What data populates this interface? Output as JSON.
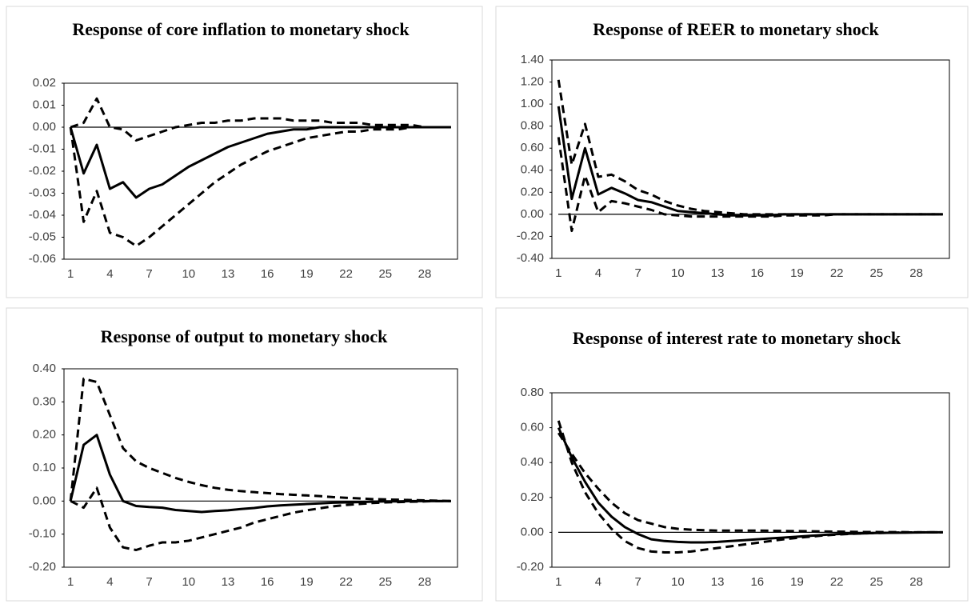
{
  "chart_data": [
    {
      "type": "line",
      "title": "Response of core inflation to monetary shock",
      "categories": [
        1,
        null,
        null,
        4,
        null,
        null,
        7,
        null,
        null,
        10,
        null,
        null,
        13,
        null,
        null,
        16,
        null,
        null,
        19,
        null,
        null,
        22,
        null,
        null,
        25,
        null,
        null,
        28,
        null,
        null
      ],
      "ylim": [
        -0.06,
        0.02
      ],
      "yticks": [
        -0.06,
        -0.05,
        -0.04,
        -0.03,
        -0.02,
        -0.01,
        {
          "value": 0,
          "label": "0.00"
        },
        0.01,
        0.02
      ],
      "zero_line": true,
      "series": [
        {
          "color": "#000000",
          "dashed": false,
          "values": [
            0,
            -0.021,
            -0.008,
            -0.028,
            -0.025,
            -0.032,
            -0.028,
            -0.026,
            -0.022,
            -0.018,
            -0.015,
            -0.012,
            -0.009,
            -0.007,
            -0.005,
            -0.003,
            -0.002,
            -0.001,
            -0.001,
            0,
            0,
            0,
            0,
            0,
            0,
            0,
            0,
            0,
            0,
            0
          ]
        },
        {
          "color": "#000000",
          "dashed": true,
          "values": [
            0,
            -0.043,
            -0.029,
            -0.048,
            -0.05,
            -0.054,
            -0.05,
            -0.045,
            -0.04,
            -0.035,
            -0.03,
            -0.025,
            -0.021,
            -0.017,
            -0.014,
            -0.011,
            -0.009,
            -0.007,
            -0.005,
            -0.004,
            -0.003,
            -0.002,
            -0.002,
            -0.001,
            -0.001,
            -0.001,
            0,
            0,
            0,
            0
          ]
        },
        {
          "color": "#000000",
          "dashed": true,
          "values": [
            0,
            0.002,
            0.013,
            0,
            -0.001,
            -0.006,
            -0.004,
            -0.002,
            0,
            0.001,
            0.002,
            0.002,
            0.003,
            0.003,
            0.004,
            0.004,
            0.004,
            0.003,
            0.003,
            0.003,
            0.002,
            0.002,
            0.002,
            0.001,
            0.001,
            0.001,
            0.001,
            0,
            0,
            0
          ]
        }
      ]
    },
    {
      "type": "line",
      "title": "Response of REER to monetary shock",
      "categories": [
        1,
        null,
        null,
        4,
        null,
        null,
        7,
        null,
        null,
        10,
        null,
        null,
        13,
        null,
        null,
        16,
        null,
        null,
        19,
        null,
        null,
        22,
        null,
        null,
        25,
        null,
        null,
        28,
        null,
        null
      ],
      "ylim": [
        -0.4,
        1.4
      ],
      "yticks": [
        {
          "value": -0.4,
          "label": "-0.40"
        },
        {
          "value": -0.2,
          "label": "-0.20"
        },
        {
          "value": 0,
          "label": "0.00"
        },
        {
          "value": 0.2,
          "label": "0.20"
        },
        {
          "value": 0.4,
          "label": "0.40"
        },
        {
          "value": 0.6,
          "label": "0.60"
        },
        {
          "value": 0.8,
          "label": "0.80"
        },
        {
          "value": 1.0,
          "label": "1.00"
        },
        {
          "value": 1.2,
          "label": "1.20"
        },
        {
          "value": 1.4,
          "label": "1.40"
        }
      ],
      "zero_line": true,
      "series": [
        {
          "color": "#000000",
          "dashed": false,
          "values": [
            0.98,
            0.14,
            0.6,
            0.18,
            0.24,
            0.19,
            0.13,
            0.11,
            0.07,
            0.03,
            0.02,
            0.01,
            0,
            -0.01,
            -0.01,
            -0.01,
            -0.01,
            0,
            0,
            0,
            0,
            0,
            0,
            0,
            0,
            0,
            0,
            0,
            0,
            0
          ]
        },
        {
          "color": "#000000",
          "dashed": true,
          "values": [
            0.7,
            -0.15,
            0.35,
            0.02,
            0.12,
            0.1,
            0.07,
            0.04,
            0,
            -0.01,
            -0.02,
            -0.02,
            -0.02,
            -0.02,
            -0.02,
            -0.02,
            -0.02,
            -0.01,
            -0.01,
            -0.01,
            -0.01,
            0,
            0,
            0,
            0,
            0,
            0,
            0,
            0,
            0
          ]
        },
        {
          "color": "#000000",
          "dashed": true,
          "values": [
            1.22,
            0.45,
            0.82,
            0.34,
            0.36,
            0.3,
            0.22,
            0.18,
            0.12,
            0.08,
            0.05,
            0.03,
            0.02,
            0.01,
            0,
            0,
            0,
            0,
            0,
            0,
            0,
            0,
            0,
            0,
            0,
            0,
            0,
            0,
            0,
            0
          ]
        }
      ]
    },
    {
      "type": "line",
      "title": "Response of output to monetary shock",
      "categories": [
        1,
        null,
        null,
        4,
        null,
        null,
        7,
        null,
        null,
        10,
        null,
        null,
        13,
        null,
        null,
        16,
        null,
        null,
        19,
        null,
        null,
        22,
        null,
        null,
        25,
        null,
        null,
        28,
        null,
        null
      ],
      "ylim": [
        -0.2,
        0.4
      ],
      "yticks": [
        {
          "value": -0.2,
          "label": "-0.20"
        },
        {
          "value": -0.1,
          "label": "-0.10"
        },
        {
          "value": 0,
          "label": "0.00"
        },
        {
          "value": 0.1,
          "label": "0.10"
        },
        {
          "value": 0.2,
          "label": "0.20"
        },
        {
          "value": 0.3,
          "label": "0.30"
        },
        {
          "value": 0.4,
          "label": "0.40"
        }
      ],
      "zero_line": true,
      "series": [
        {
          "color": "#000000",
          "dashed": false,
          "values": [
            0,
            0.17,
            0.2,
            0.08,
            0,
            -0.015,
            -0.018,
            -0.02,
            -0.027,
            -0.03,
            -0.033,
            -0.03,
            -0.028,
            -0.024,
            -0.021,
            -0.016,
            -0.013,
            -0.011,
            -0.009,
            -0.007,
            -0.005,
            -0.004,
            -0.003,
            -0.002,
            -0.001,
            -0.001,
            0,
            0,
            0,
            0
          ]
        },
        {
          "color": "#000000",
          "dashed": true,
          "values": [
            0,
            -0.02,
            0.04,
            -0.08,
            -0.14,
            -0.148,
            -0.135,
            -0.125,
            -0.125,
            -0.12,
            -0.11,
            -0.1,
            -0.09,
            -0.08,
            -0.065,
            -0.055,
            -0.045,
            -0.035,
            -0.028,
            -0.022,
            -0.016,
            -0.012,
            -0.009,
            -0.006,
            -0.004,
            -0.003,
            -0.002,
            -0.001,
            0,
            0
          ]
        },
        {
          "color": "#000000",
          "dashed": true,
          "values": [
            0,
            0.37,
            0.36,
            0.26,
            0.16,
            0.12,
            0.1,
            0.085,
            0.07,
            0.058,
            0.048,
            0.04,
            0.034,
            0.03,
            0.027,
            0.024,
            0.021,
            0.019,
            0.017,
            0.015,
            0.012,
            0.01,
            0.008,
            0.006,
            0.005,
            0.004,
            0.003,
            0.002,
            0.001,
            0
          ]
        }
      ]
    },
    {
      "type": "line",
      "title": "Response of interest rate to monetary shock",
      "categories": [
        1,
        null,
        null,
        4,
        null,
        null,
        7,
        null,
        null,
        10,
        null,
        null,
        13,
        null,
        null,
        16,
        null,
        null,
        19,
        null,
        null,
        22,
        null,
        null,
        25,
        null,
        null,
        28,
        null,
        null
      ],
      "ylim": [
        -0.2,
        0.8
      ],
      "yticks": [
        {
          "value": -0.2,
          "label": "-0.20"
        },
        {
          "value": 0,
          "label": "0.00"
        },
        {
          "value": 0.2,
          "label": "0.20"
        },
        {
          "value": 0.4,
          "label": "0.40"
        },
        {
          "value": 0.6,
          "label": "0.60"
        },
        {
          "value": 0.8,
          "label": "0.80"
        }
      ],
      "zero_line": true,
      "series": [
        {
          "color": "#000000",
          "dashed": false,
          "values": [
            0.6,
            0.43,
            0.29,
            0.17,
            0.09,
            0.03,
            -0.01,
            -0.04,
            -0.05,
            -0.055,
            -0.058,
            -0.058,
            -0.055,
            -0.05,
            -0.045,
            -0.04,
            -0.035,
            -0.03,
            -0.025,
            -0.02,
            -0.015,
            -0.01,
            -0.008,
            -0.006,
            -0.004,
            -0.003,
            -0.002,
            -0.001,
            0,
            0
          ]
        },
        {
          "color": "#000000",
          "dashed": true,
          "values": [
            0.64,
            0.4,
            0.23,
            0.11,
            0.02,
            -0.05,
            -0.09,
            -0.11,
            -0.115,
            -0.115,
            -0.11,
            -0.1,
            -0.09,
            -0.08,
            -0.07,
            -0.06,
            -0.05,
            -0.04,
            -0.032,
            -0.025,
            -0.018,
            -0.013,
            -0.009,
            -0.006,
            -0.004,
            -0.002,
            -0.001,
            0,
            0,
            0
          ]
        },
        {
          "color": "#000000",
          "dashed": true,
          "values": [
            0.57,
            0.45,
            0.34,
            0.25,
            0.17,
            0.11,
            0.07,
            0.05,
            0.03,
            0.02,
            0.015,
            0.012,
            0.01,
            0.01,
            0.01,
            0.01,
            0.009,
            0.008,
            0.007,
            0.006,
            0.005,
            0.004,
            0.003,
            0.002,
            0.002,
            0.001,
            0.001,
            0,
            0,
            0
          ]
        }
      ]
    }
  ]
}
